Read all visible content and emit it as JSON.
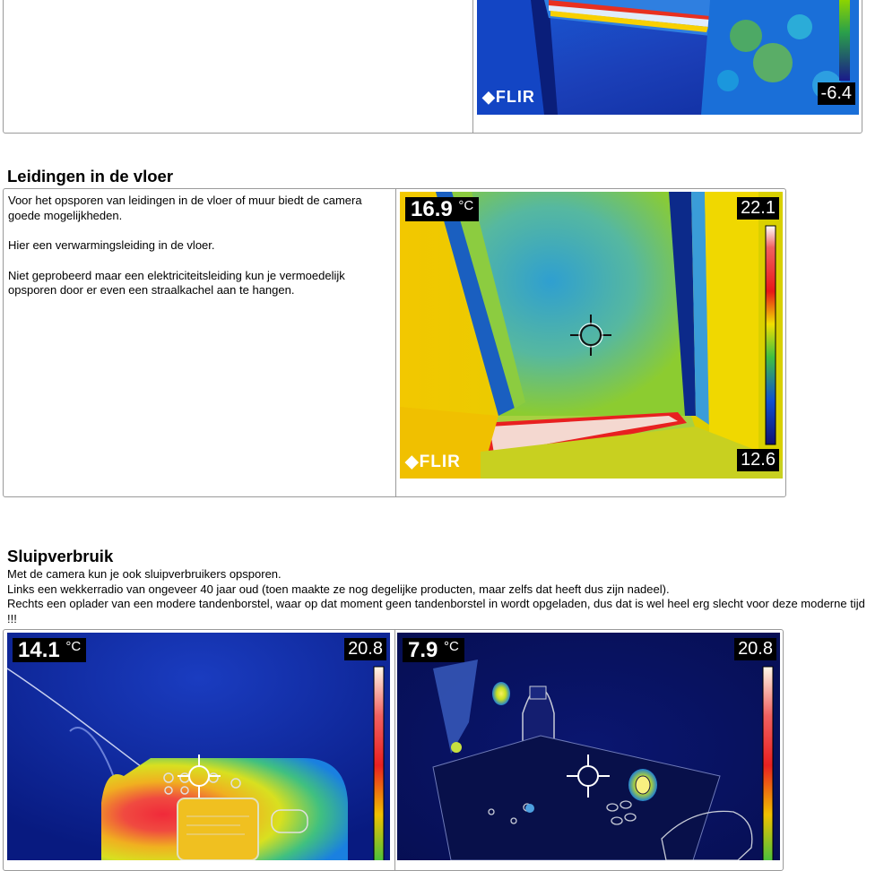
{
  "top_image": {
    "scale_min": "-6.4",
    "brand": "FLIR"
  },
  "section1": {
    "heading": "Leidingen in de vloer",
    "paragraphs": [
      "Voor het opsporen van leidingen in de vloer of muur biedt de camera goede mogelijkheden.",
      "Hier een verwarmingsleiding in de vloer.",
      "Niet geprobeerd maar een elektriciteitsleiding kun je vermoedelijk opsporen door er even een straalkachel aan te hangen."
    ],
    "image": {
      "spot_temp": "16.9",
      "unit": "°C",
      "scale_max": "22.1",
      "scale_min": "12.6",
      "brand": "FLIR"
    }
  },
  "section2": {
    "heading": "Sluipverbruik",
    "lines": [
      "Met de camera kun je ook sluipverbruikers opsporen.",
      "Links een wekkerradio van ongeveer 40 jaar oud (toen maakte ze nog degelijke producten, maar zelfs dat heeft dus zijn nadeel).",
      "Rechts een oplader van een modere tandenborstel, waar op dat moment geen tandenborstel in wordt opgeladen, dus dat is wel heel erg slecht voor deze moderne tijd !!!"
    ],
    "image_left": {
      "spot_temp": "14.1",
      "unit": "°C",
      "scale_max": "20.8"
    },
    "image_right": {
      "spot_temp": "7.9",
      "unit": "°C",
      "scale_max": "20.8"
    }
  }
}
